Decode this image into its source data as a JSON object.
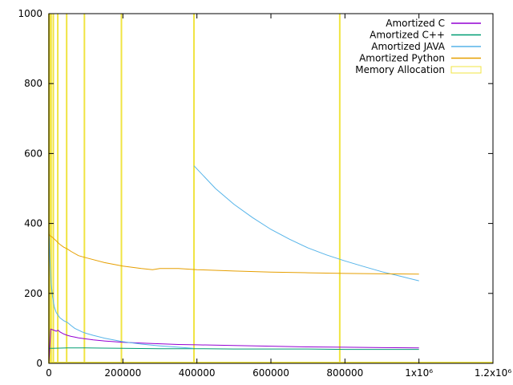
{
  "chart_data": {
    "type": "line",
    "title": "",
    "xlabel": "",
    "ylabel": "",
    "xlim": [
      0,
      1200000
    ],
    "ylim": [
      0,
      1000
    ],
    "x_ticks": [
      {
        "value": 0,
        "label": "0"
      },
      {
        "value": 200000,
        "label": "200000"
      },
      {
        "value": 400000,
        "label": "400000"
      },
      {
        "value": 600000,
        "label": "600000"
      },
      {
        "value": 800000,
        "label": "800000"
      },
      {
        "value": 1000000,
        "label": "1x10⁶"
      },
      {
        "value": 1200000,
        "label": "1.2x10⁶"
      }
    ],
    "y_ticks": [
      {
        "value": 0,
        "label": "0"
      },
      {
        "value": 200,
        "label": "200"
      },
      {
        "value": 400,
        "label": "400"
      },
      {
        "value": 600,
        "label": "600"
      },
      {
        "value": 800,
        "label": "800"
      },
      {
        "value": 1000,
        "label": "1000"
      }
    ],
    "grid": false,
    "legend_position": "top-right",
    "series": [
      {
        "name": "Amortized C",
        "color": "#9400d3",
        "x": [
          0,
          5000,
          10000,
          15000,
          20000,
          25000,
          30000,
          40000,
          50000,
          60000,
          70000,
          80000,
          100000,
          120000,
          150000,
          200000,
          250000,
          300000,
          350000,
          400000,
          500000,
          600000,
          700000,
          800000,
          900000,
          1000000
        ],
        "y": [
          0,
          98,
          96,
          94,
          92,
          95,
          90,
          84,
          80,
          77,
          75,
          73,
          70,
          67,
          64,
          60,
          58,
          56,
          54,
          53,
          51,
          49,
          47,
          46,
          45,
          44
        ]
      },
      {
        "name": "Amortized C++",
        "color": "#009e73",
        "x": [
          0,
          10000,
          50000,
          100000,
          200000,
          300000,
          400000,
          500000,
          600000,
          700000,
          800000,
          900000,
          1000000
        ],
        "y": [
          43,
          43,
          44,
          44,
          43,
          42,
          42,
          41,
          41,
          41,
          40,
          40,
          40
        ]
      },
      {
        "name": "Amortized JAVA",
        "color": "#56b4e9",
        "x": [
          0,
          3000,
          6000,
          10000,
          15000,
          20000,
          30000,
          40000,
          50000,
          60000,
          70000,
          80000,
          90000,
          100000,
          120000,
          150000,
          200000,
          250000,
          300000,
          350000,
          390000,
          392000,
          450000,
          500000,
          550000,
          600000,
          650000,
          700000,
          750000,
          800000,
          850000,
          900000,
          950000,
          1000000
        ],
        "y": [
          380,
          290,
          230,
          190,
          160,
          145,
          130,
          122,
          117,
          108,
          100,
          95,
          90,
          86,
          80,
          72,
          62,
          55,
          50,
          46,
          43,
          565,
          500,
          455,
          417,
          383,
          355,
          330,
          310,
          293,
          277,
          262,
          249,
          236
        ]
      },
      {
        "name": "Amortized Python",
        "color": "#e69f00",
        "x": [
          0,
          3000,
          10000,
          20000,
          30000,
          40000,
          50000,
          60000,
          80000,
          100000,
          150000,
          200000,
          250000,
          280000,
          300000,
          350000,
          400000,
          500000,
          600000,
          700000,
          800000,
          900000,
          1000000
        ],
        "y": [
          370,
          365,
          360,
          350,
          340,
          332,
          327,
          320,
          308,
          302,
          288,
          278,
          271,
          268,
          271,
          271,
          268,
          264,
          261,
          259,
          257,
          256,
          255
        ]
      }
    ],
    "memory_allocation": {
      "name": "Memory Allocation",
      "color": "#f0e442",
      "x": [
        0,
        3000,
        6000,
        12000,
        24000,
        48000,
        96000,
        196000,
        392000,
        786000
      ]
    }
  }
}
